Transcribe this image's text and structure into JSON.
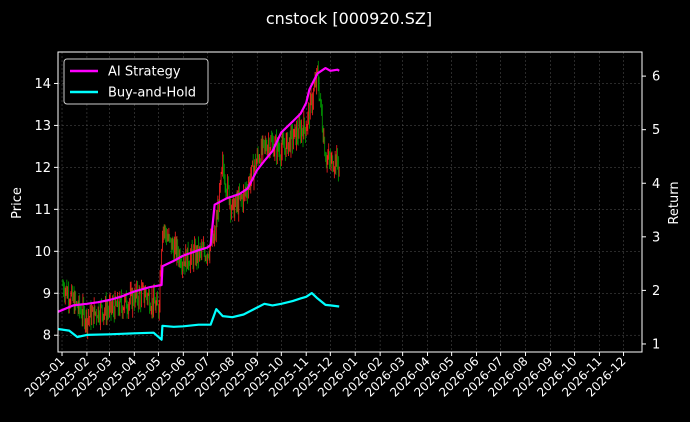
{
  "chart_data": {
    "type": "line",
    "title": "cnstock [000920.SZ]",
    "ylabel": "Price",
    "y2label": "Return",
    "ylim": [
      7.6,
      14.75
    ],
    "y2lim": [
      0.85,
      6.45
    ],
    "x_range": [
      "2024-12-27",
      "2026-12-24"
    ],
    "yticks": [
      "8",
      "9",
      "10",
      "11",
      "12",
      "13",
      "14"
    ],
    "y2ticks": [
      "1",
      "2",
      "3",
      "4",
      "5",
      "6"
    ],
    "xticks": [
      "2025-01",
      "2025-02",
      "2025-03",
      "2025-04",
      "2025-05",
      "2025-06",
      "2025-07",
      "2025-08",
      "2025-09",
      "2025-10",
      "2025-11",
      "2025-12",
      "2026-01",
      "2026-02",
      "2026-03",
      "2026-04",
      "2026-05",
      "2026-06",
      "2026-07",
      "2026-08",
      "2026-09",
      "2026-10",
      "2026-11",
      "2026-12"
    ],
    "grid": true,
    "legend_position": "top-left",
    "colors": {
      "background": "#000000",
      "text": "#ffffff",
      "grid": "#555555",
      "up_candle": "#ff2020",
      "down_candle": "#00a000",
      "ai_strategy": "#ff00ff",
      "buy_and_hold": "#00ffff"
    },
    "price": {
      "name": "Price",
      "x": [
        "2025-01-02",
        "2025-01-15",
        "2025-02-01",
        "2025-02-15",
        "2025-03-01",
        "2025-03-15",
        "2025-04-01",
        "2025-04-15",
        "2025-05-01",
        "2025-05-06",
        "2025-05-15",
        "2025-06-01",
        "2025-06-15",
        "2025-07-01",
        "2025-07-10",
        "2025-07-20",
        "2025-08-01",
        "2025-08-15",
        "2025-09-01",
        "2025-09-15",
        "2025-10-01",
        "2025-10-15",
        "2025-11-01",
        "2025-11-08",
        "2025-11-15",
        "2025-11-25",
        "2025-12-01",
        "2025-12-08",
        "2025-12-12"
      ],
      "y": [
        9.2,
        8.8,
        8.4,
        8.6,
        8.6,
        8.7,
        8.9,
        9.0,
        8.6,
        10.6,
        10.2,
        9.8,
        9.9,
        10.0,
        10.3,
        12.0,
        11.0,
        11.3,
        12.2,
        12.6,
        12.4,
        12.7,
        13.0,
        13.6,
        14.2,
        12.3,
        12.1,
        12.2,
        12.0
      ]
    },
    "series": [
      {
        "name": "AI Strategy",
        "x": [
          "2024-12-27",
          "2025-01-15",
          "2025-02-01",
          "2025-02-15",
          "2025-03-01",
          "2025-03-15",
          "2025-04-01",
          "2025-04-20",
          "2025-05-05",
          "2025-05-06",
          "2025-05-20",
          "2025-06-01",
          "2025-06-20",
          "2025-07-01",
          "2025-07-05",
          "2025-07-10",
          "2025-07-25",
          "2025-08-10",
          "2025-08-20",
          "2025-09-01",
          "2025-09-10",
          "2025-09-20",
          "2025-10-01",
          "2025-10-15",
          "2025-10-25",
          "2025-11-01",
          "2025-11-05",
          "2025-11-15",
          "2025-11-25",
          "2025-12-01",
          "2025-12-10",
          "2025-12-12"
        ],
        "values": [
          1.6,
          1.72,
          1.75,
          1.78,
          1.82,
          1.88,
          1.98,
          2.06,
          2.1,
          2.45,
          2.55,
          2.65,
          2.75,
          2.8,
          2.85,
          3.6,
          3.72,
          3.8,
          3.9,
          4.25,
          4.42,
          4.6,
          4.95,
          5.15,
          5.3,
          5.5,
          5.75,
          6.05,
          6.15,
          6.1,
          6.12,
          6.1
        ]
      },
      {
        "name": "Buy-and-Hold",
        "x": [
          "2024-12-27",
          "2025-01-10",
          "2025-01-20",
          "2025-02-01",
          "2025-03-01",
          "2025-04-01",
          "2025-04-25",
          "2025-05-05",
          "2025-05-06",
          "2025-05-20",
          "2025-06-01",
          "2025-06-20",
          "2025-07-05",
          "2025-07-12",
          "2025-07-20",
          "2025-08-01",
          "2025-08-15",
          "2025-09-01",
          "2025-09-10",
          "2025-09-20",
          "2025-10-01",
          "2025-10-15",
          "2025-10-25",
          "2025-11-01",
          "2025-11-08",
          "2025-11-15",
          "2025-11-25",
          "2025-12-01",
          "2025-12-12"
        ],
        "values": [
          1.28,
          1.25,
          1.13,
          1.17,
          1.18,
          1.2,
          1.21,
          1.08,
          1.34,
          1.32,
          1.33,
          1.36,
          1.36,
          1.65,
          1.52,
          1.5,
          1.55,
          1.68,
          1.75,
          1.72,
          1.75,
          1.8,
          1.85,
          1.88,
          1.95,
          1.85,
          1.73,
          1.72,
          1.7
        ]
      }
    ]
  }
}
